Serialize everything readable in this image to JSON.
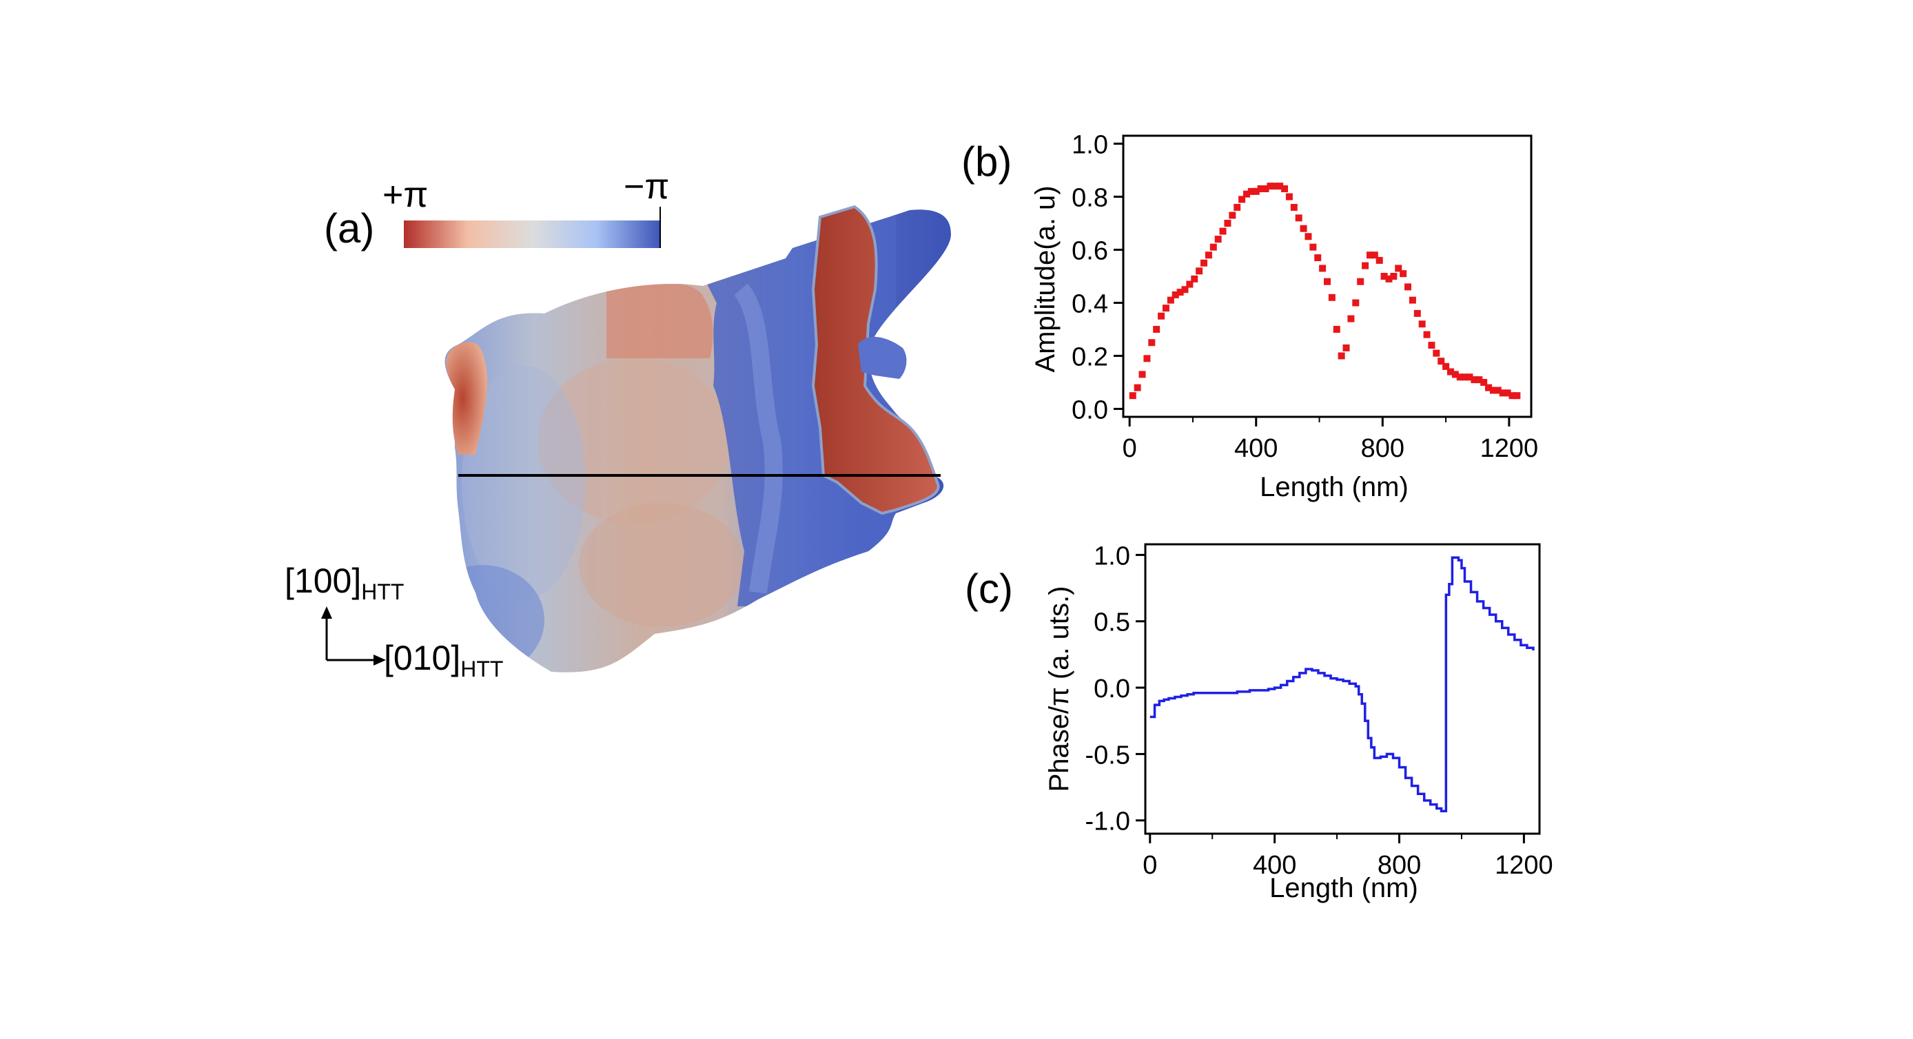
{
  "figure": {
    "panel_a": {
      "label": "(a)",
      "colorbar": {
        "left_label": "+π",
        "right_label": "−π",
        "colors": [
          "#b2302b",
          "#f2bfa6",
          "#dcdcdc",
          "#a9c3f5",
          "#3f56b8"
        ]
      },
      "axis_vertical": {
        "text": "[100]",
        "sub": "HTT"
      },
      "axis_horizontal": {
        "text": "[010]",
        "sub": "HTT"
      }
    }
  },
  "chart_data": [
    {
      "id": "b",
      "panel_label": "(b)",
      "type": "scatter",
      "xlabel": "Length (nm)",
      "ylabel": "Amplitude(a. u)",
      "xlim": [
        -20,
        1270
      ],
      "ylim": [
        -0.03,
        1.03
      ],
      "xticks": [
        0,
        400,
        800,
        1200
      ],
      "xtick_labels": [
        "0",
        "400",
        "800",
        "1200"
      ],
      "yticks": [
        0.0,
        0.2,
        0.4,
        0.6,
        0.8,
        1.0
      ],
      "ytick_labels": [
        "0.0",
        "0.2",
        "0.4",
        "0.6",
        "0.8",
        "1.0"
      ],
      "marker_color": "#e8161b",
      "series": [
        {
          "name": "amplitude",
          "x": [
            10,
            25,
            40,
            55,
            70,
            85,
            100,
            115,
            130,
            145,
            160,
            175,
            190,
            205,
            220,
            235,
            250,
            265,
            280,
            295,
            310,
            325,
            340,
            355,
            370,
            385,
            400,
            415,
            430,
            445,
            460,
            475,
            490,
            505,
            520,
            535,
            550,
            565,
            580,
            595,
            610,
            625,
            640,
            655,
            670,
            685,
            700,
            715,
            730,
            745,
            760,
            775,
            790,
            805,
            820,
            835,
            850,
            865,
            880,
            895,
            910,
            925,
            940,
            955,
            970,
            985,
            1000,
            1015,
            1030,
            1045,
            1060,
            1075,
            1090,
            1105,
            1120,
            1135,
            1150,
            1165,
            1180,
            1195,
            1210,
            1225
          ],
          "y": [
            0.05,
            0.08,
            0.13,
            0.19,
            0.25,
            0.3,
            0.35,
            0.38,
            0.41,
            0.43,
            0.44,
            0.45,
            0.47,
            0.49,
            0.52,
            0.55,
            0.58,
            0.61,
            0.64,
            0.67,
            0.7,
            0.73,
            0.76,
            0.79,
            0.81,
            0.82,
            0.82,
            0.83,
            0.83,
            0.84,
            0.84,
            0.84,
            0.83,
            0.8,
            0.76,
            0.72,
            0.68,
            0.65,
            0.61,
            0.57,
            0.53,
            0.48,
            0.42,
            0.3,
            0.2,
            0.23,
            0.34,
            0.4,
            0.48,
            0.54,
            0.58,
            0.58,
            0.56,
            0.5,
            0.49,
            0.5,
            0.53,
            0.51,
            0.46,
            0.41,
            0.36,
            0.32,
            0.28,
            0.24,
            0.21,
            0.18,
            0.16,
            0.14,
            0.13,
            0.12,
            0.12,
            0.12,
            0.11,
            0.11,
            0.1,
            0.08,
            0.07,
            0.07,
            0.06,
            0.06,
            0.05,
            0.05
          ]
        }
      ]
    },
    {
      "id": "c",
      "panel_label": "(c)",
      "type": "line",
      "xlabel": "Length (nm)",
      "ylabel": "Phase/π (a. uts.)",
      "xlim": [
        -15,
        1250
      ],
      "ylim": [
        -1.1,
        1.08
      ],
      "xticks": [
        0,
        400,
        800,
        1200
      ],
      "xtick_labels": [
        "0",
        "400",
        "800",
        "1200"
      ],
      "yticks": [
        -1.0,
        -0.5,
        0.0,
        0.5,
        1.0
      ],
      "ytick_labels": [
        "-1.0",
        "-0.5",
        "0.0",
        "0.5",
        "1.0"
      ],
      "line_color": "#1f1fe6",
      "step": true,
      "series": [
        {
          "name": "phase",
          "x": [
            0,
            15,
            30,
            45,
            60,
            80,
            100,
            120,
            140,
            160,
            200,
            240,
            280,
            320,
            360,
            380,
            400,
            420,
            440,
            460,
            480,
            500,
            520,
            540,
            560,
            580,
            600,
            620,
            640,
            660,
            670,
            680,
            690,
            700,
            710,
            720,
            740,
            760,
            780,
            800,
            820,
            840,
            860,
            880,
            900,
            920,
            935,
            945,
            950,
            960,
            970,
            980,
            990,
            1000,
            1010,
            1030,
            1050,
            1070,
            1090,
            1110,
            1130,
            1150,
            1170,
            1190,
            1210,
            1230
          ],
          "y": [
            -0.22,
            -0.13,
            -0.1,
            -0.09,
            -0.08,
            -0.07,
            -0.06,
            -0.05,
            -0.04,
            -0.04,
            -0.04,
            -0.04,
            -0.03,
            -0.02,
            -0.02,
            -0.01,
            0.0,
            0.02,
            0.05,
            0.08,
            0.11,
            0.14,
            0.13,
            0.11,
            0.09,
            0.07,
            0.06,
            0.05,
            0.03,
            0.01,
            -0.05,
            -0.12,
            -0.25,
            -0.38,
            -0.45,
            -0.53,
            -0.52,
            -0.5,
            -0.53,
            -0.6,
            -0.68,
            -0.74,
            -0.8,
            -0.85,
            -0.88,
            -0.91,
            -0.93,
            -0.93,
            0.7,
            0.78,
            0.98,
            0.98,
            0.96,
            0.9,
            0.8,
            0.72,
            0.65,
            0.6,
            0.55,
            0.5,
            0.45,
            0.4,
            0.36,
            0.32,
            0.3,
            0.28
          ]
        }
      ]
    }
  ]
}
